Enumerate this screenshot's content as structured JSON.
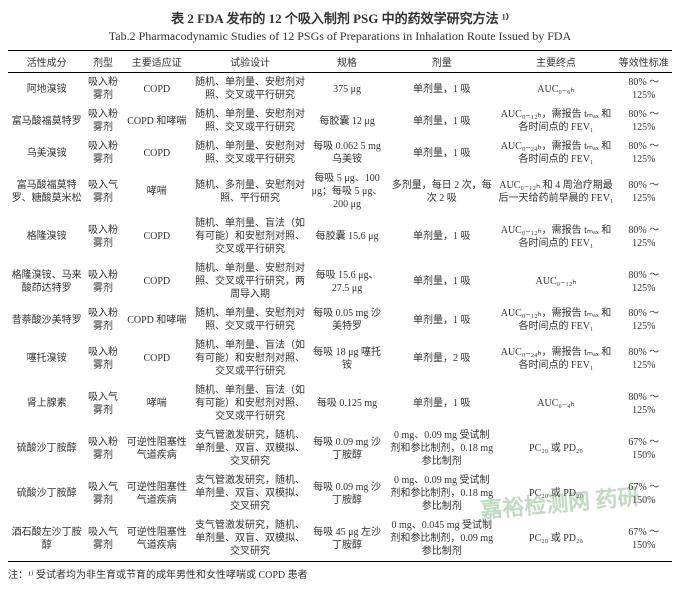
{
  "caption": {
    "cn": "表 2  FDA 发布的 12 个吸入制剂 PSG 中的药效学研究方法 ¹⁾",
    "en": "Tab.2  Pharmacodynamic Studies of 12 PSGs of Preparations in Inhalation Route Issued by FDA"
  },
  "columns": [
    "活性成分",
    "剂型",
    "主要适应证",
    "试验设计",
    "规格",
    "剂量",
    "主要终点",
    "等效性标准"
  ],
  "rows": [
    {
      "c0": "阿地溴铵",
      "c1": "吸入粉雾剂",
      "c2": "COPD",
      "c3": "随机、单剂量、安慰剂对照、交叉或平行研究",
      "c4": "375 μg",
      "c5": "单剂量，1 吸",
      "c6": "AUC₀₋₆ₕ",
      "c7": "80% ～ 125%"
    },
    {
      "c0": "富马酸福莫特罗",
      "c1": "吸入粉雾剂",
      "c2": "COPD 和哮喘",
      "c3": "随机、单剂量、安慰剂对照、交叉或平行研究",
      "c4": "每胶囊 12 μg",
      "c5": "单剂量，1 吸",
      "c6": "AUC₀₋₁₂ₕ，需报告 tₘₐₓ 和各时间点的 FEV₁",
      "c7": "80% ～ 125%"
    },
    {
      "c0": "乌美溴铵",
      "c1": "吸入粉雾剂",
      "c2": "COPD",
      "c3": "随机、单剂量、安慰剂对照、交叉或平行研究",
      "c4": "每吸 0.062 5 mg 乌美铵",
      "c5": "单剂量，1 吸",
      "c6": "AUC₀₋₂₄ₕ，需报告 tₘₐₓ 和各时间点的 FEV₁",
      "c7": "80% ～ 125%"
    },
    {
      "c0": "富马酸福莫特罗、糖酸莫米松",
      "c1": "吸入气雾剂",
      "c2": "哮喘",
      "c3": "随机、多剂量、安慰剂对照、平行研究",
      "c4": "每吸 5 μg、100 μg；每吸 5 μg、200 μg",
      "c5": "多剂量，每日 2 次，每次 2 吸",
      "c6": "AUC₀₋₁₂ₕ 和 4 周治疗期最后一天给药前早晨的 FEV₁",
      "c7": "80% ～ 125%"
    },
    {
      "c0": "格隆溴铵",
      "c1": "吸入粉雾剂",
      "c2": "COPD",
      "c3": "随机、单剂量、盲法（如有可能）和安慰剂对照、交叉或平行研究",
      "c4": "每胶囊 15.6 μg",
      "c5": "单剂量，1 吸",
      "c6": "AUC₀₋₁₂ₕ，需报告 tₘₐₓ 和各时间点的 FEV₁",
      "c7": "80% ～ 125%"
    },
    {
      "c0": "格隆溴铵、马来酸茚达特罗",
      "c1": "吸入粉雾剂",
      "c2": "COPD",
      "c3": "随机、单剂量、安慰剂对照、交叉或平行研究，两周导入期",
      "c4": "每吸 15.6 μg、27.5 μg",
      "c5": "单剂量，1 吸",
      "c6": "AUC₀₋₁₂ₕ",
      "c7": "80% ～ 125%"
    },
    {
      "c0": "昔萘酸沙美特罗",
      "c1": "吸入粉雾剂",
      "c2": "COPD 和哮喘",
      "c3": "随机、单剂量、安慰剂对照、交叉或平行研究",
      "c4": "每吸 0.05 mg 沙美特罗",
      "c5": "单剂量，1 吸",
      "c6": "AUC₀₋₁₂ₕ，需报告 tₘₐₓ 和各时间点的 FEV₁",
      "c7": "80% ～ 125%"
    },
    {
      "c0": "噻托溴铵",
      "c1": "吸入粉雾剂",
      "c2": "COPD",
      "c3": "随机、单剂量、盲法（如有可能）和安慰剂对照、交叉或平行研究",
      "c4": "每吸 18 μg 噻托铵",
      "c5": "单剂量，2 吸",
      "c6": "AUC₀₋₂₄ₕ，需报告 tₘₐₓ 和各时间点的 FEV₁",
      "c7": "80% ～ 125%"
    },
    {
      "c0": "肾上腺素",
      "c1": "吸入气雾剂",
      "c2": "哮喘",
      "c3": "随机、单剂量、盲法（如有可能）和安慰剂对照、交叉或平行研究",
      "c4": "每吸 0.125 mg",
      "c5": "单剂量，1 吸",
      "c6": "AUC₀₋₄ₕ",
      "c7": "80% ～ 125%"
    },
    {
      "c0": "硫酸沙丁胺醇",
      "c1": "吸入粉雾剂",
      "c2": "可逆性阻塞性气道疾病",
      "c3": "支气管激发研究，随机、单剂量、双盲、双模拟、交叉研究",
      "c4": "每吸 0.09 mg 沙丁胺醇",
      "c5": "0 mg、0.09 mg 受试制剂和参比制剂，0.18 mg 参比制剂",
      "c6": "PC₂₀ 或 PD₂₀",
      "c7": "67% ～ 150%"
    },
    {
      "c0": "硫酸沙丁胺醇",
      "c1": "吸入气雾剂",
      "c2": "可逆性阻塞性气道疾病",
      "c3": "支气管激发研究，随机、单剂量、双盲、双模拟、交叉研究",
      "c4": "每吸 0.09 mg 沙丁胺醇",
      "c5": "0 mg、0.09 mg 受试制剂和参比制剂，0.18 mg 参比制剂",
      "c6": "PC₂₀ 或 PD₂₀",
      "c7": "67% ～ 150%"
    },
    {
      "c0": "酒石酸左沙丁胺醇",
      "c1": "吸入气雾剂",
      "c2": "可逆性阻塞性气道疾病",
      "c3": "支气管激发研究，随机、单剂量、双盲、双模拟、交叉研究",
      "c4": "每吸 45 μg 左沙丁胺醇",
      "c5": "0 mg、0.045 mg 受试制剂和参比制剂，0.09 mg 参比制剂",
      "c6": "PC₂₀ 或 PD₂₀",
      "c7": "67% ～ 150%"
    }
  ],
  "footnote": "注：¹⁾ 受试者均为非生育或节育的成年男性和女性哮喘或 COPD 患者",
  "watermark": "嘉裕检测网 药研",
  "style": {
    "background_color": "#ffffff",
    "text_color": "#333333",
    "border_color": "#000000",
    "caption_fontsize": 13,
    "body_fontsize": 10,
    "footnote_fontsize": 10
  }
}
